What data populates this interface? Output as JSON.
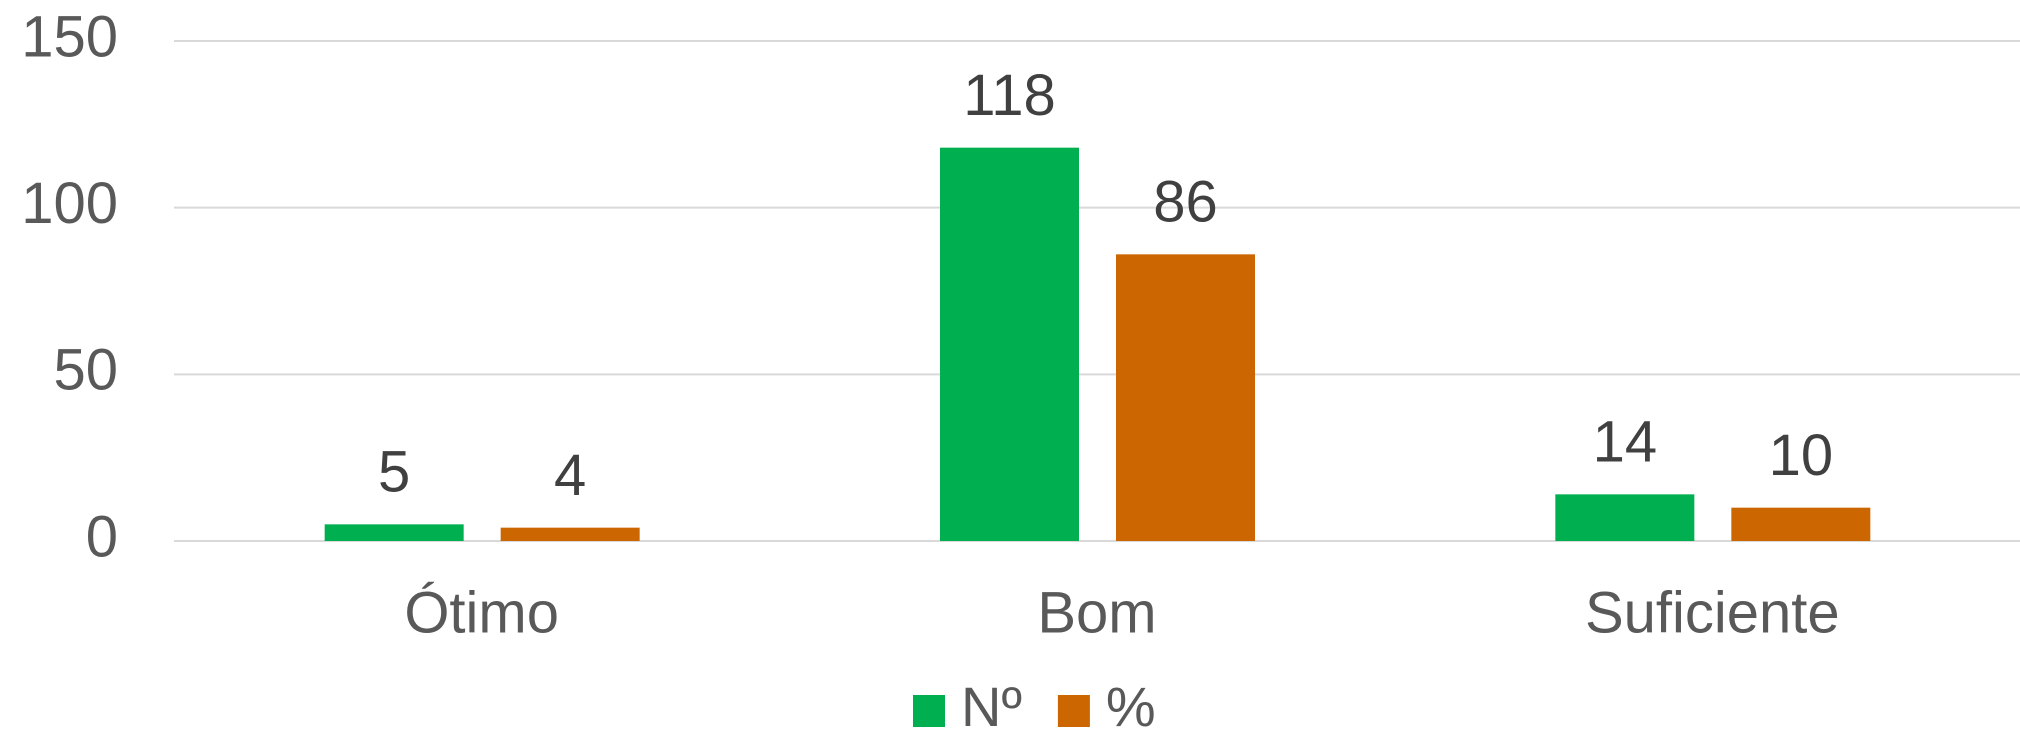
{
  "chart_data": {
    "type": "bar",
    "categories": [
      "Ótimo",
      "Bom",
      "Suficiente"
    ],
    "series": [
      {
        "name": "Nº",
        "color": "#00b050",
        "values": [
          5,
          118,
          14
        ]
      },
      {
        "name": "%",
        "color": "#cc6600",
        "values": [
          4,
          86,
          10
        ]
      }
    ],
    "ylim": [
      0,
      150
    ],
    "yticks": [
      0,
      50,
      100,
      150
    ],
    "grid": true,
    "legend": "bottom"
  }
}
